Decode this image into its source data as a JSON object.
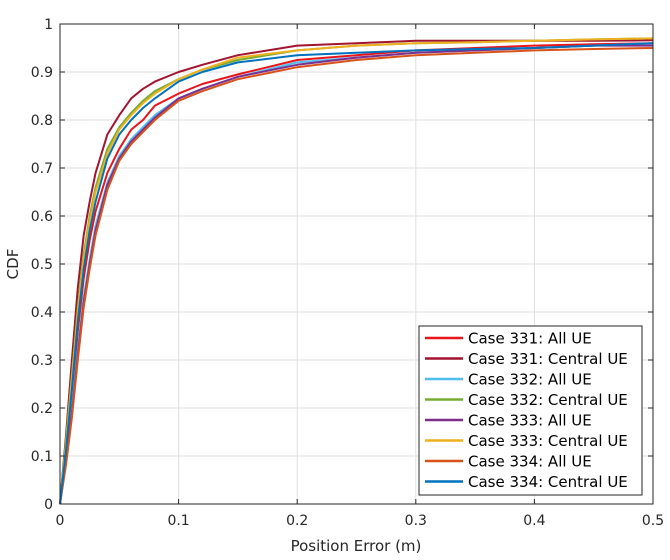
{
  "chart_data": {
    "type": "line",
    "title": "",
    "xlabel": "Position Error (m)",
    "ylabel": "CDF",
    "xlim": [
      0,
      0.5
    ],
    "ylim": [
      0,
      1
    ],
    "xticks": [
      0,
      0.1,
      0.2,
      0.3,
      0.4,
      0.5
    ],
    "xtick_labels": [
      "0",
      "0.1",
      "0.2",
      "0.3",
      "0.4",
      "0.5"
    ],
    "yticks": [
      0,
      0.1,
      0.2,
      0.3,
      0.4,
      0.5,
      0.6,
      0.7,
      0.8,
      0.9,
      1
    ],
    "ytick_labels": [
      "0",
      "0.1",
      "0.2",
      "0.3",
      "0.4",
      "0.5",
      "0.6",
      "0.7",
      "0.8",
      "0.9",
      "1"
    ],
    "grid": true,
    "legend_position": "bottom-right",
    "series": [
      {
        "name": "Case 331: All UE",
        "color": "#e8161b",
        "x": [
          0,
          0.005,
          0.01,
          0.015,
          0.02,
          0.025,
          0.03,
          0.04,
          0.05,
          0.06,
          0.07,
          0.08,
          0.1,
          0.12,
          0.15,
          0.2,
          0.25,
          0.3,
          0.35,
          0.4,
          0.45,
          0.5
        ],
        "y": [
          0,
          0.1,
          0.22,
          0.36,
          0.47,
          0.55,
          0.61,
          0.69,
          0.74,
          0.78,
          0.8,
          0.83,
          0.855,
          0.875,
          0.895,
          0.925,
          0.935,
          0.945,
          0.95,
          0.955,
          0.958,
          0.96
        ]
      },
      {
        "name": "Case 331: Central UE",
        "color": "#a2142f",
        "x": [
          0,
          0.005,
          0.01,
          0.015,
          0.02,
          0.025,
          0.03,
          0.04,
          0.05,
          0.06,
          0.07,
          0.08,
          0.1,
          0.12,
          0.15,
          0.2,
          0.25,
          0.3,
          0.35,
          0.4,
          0.45,
          0.5
        ],
        "y": [
          0,
          0.14,
          0.3,
          0.45,
          0.56,
          0.63,
          0.69,
          0.77,
          0.81,
          0.845,
          0.865,
          0.88,
          0.9,
          0.915,
          0.935,
          0.955,
          0.96,
          0.965,
          0.965,
          0.965,
          0.965,
          0.966
        ]
      },
      {
        "name": "Case 332: All UE",
        "color": "#4dbeee",
        "x": [
          0,
          0.005,
          0.01,
          0.015,
          0.02,
          0.025,
          0.03,
          0.04,
          0.05,
          0.06,
          0.07,
          0.08,
          0.1,
          0.12,
          0.15,
          0.2,
          0.25,
          0.3,
          0.35,
          0.4,
          0.45,
          0.5
        ],
        "y": [
          0,
          0.1,
          0.2,
          0.32,
          0.43,
          0.51,
          0.58,
          0.67,
          0.725,
          0.76,
          0.785,
          0.81,
          0.845,
          0.865,
          0.89,
          0.92,
          0.93,
          0.94,
          0.945,
          0.95,
          0.955,
          0.96
        ]
      },
      {
        "name": "Case 332: Central UE",
        "color": "#77ac30",
        "x": [
          0,
          0.005,
          0.01,
          0.015,
          0.02,
          0.025,
          0.03,
          0.04,
          0.05,
          0.06,
          0.07,
          0.08,
          0.1,
          0.12,
          0.15,
          0.2,
          0.25,
          0.3,
          0.35,
          0.4,
          0.45,
          0.5
        ],
        "y": [
          0,
          0.13,
          0.27,
          0.41,
          0.52,
          0.6,
          0.66,
          0.74,
          0.785,
          0.815,
          0.84,
          0.86,
          0.885,
          0.905,
          0.925,
          0.945,
          0.955,
          0.96,
          0.962,
          0.965,
          0.968,
          0.97
        ]
      },
      {
        "name": "Case 333: All UE",
        "color": "#7e2f8e",
        "x": [
          0,
          0.005,
          0.01,
          0.015,
          0.02,
          0.025,
          0.03,
          0.04,
          0.05,
          0.06,
          0.07,
          0.08,
          0.1,
          0.12,
          0.15,
          0.2,
          0.25,
          0.3,
          0.35,
          0.4,
          0.45,
          0.5
        ],
        "y": [
          0,
          0.09,
          0.19,
          0.31,
          0.42,
          0.5,
          0.57,
          0.665,
          0.72,
          0.755,
          0.78,
          0.805,
          0.845,
          0.865,
          0.89,
          0.915,
          0.93,
          0.94,
          0.945,
          0.95,
          0.955,
          0.955
        ]
      },
      {
        "name": "Case 333: Central UE",
        "color": "#edb120",
        "x": [
          0,
          0.005,
          0.01,
          0.015,
          0.02,
          0.025,
          0.03,
          0.04,
          0.05,
          0.06,
          0.07,
          0.08,
          0.1,
          0.12,
          0.15,
          0.2,
          0.25,
          0.3,
          0.35,
          0.4,
          0.45,
          0.5
        ],
        "y": [
          0,
          0.12,
          0.26,
          0.4,
          0.51,
          0.59,
          0.65,
          0.73,
          0.78,
          0.81,
          0.835,
          0.855,
          0.885,
          0.905,
          0.93,
          0.945,
          0.955,
          0.96,
          0.962,
          0.965,
          0.968,
          0.97
        ]
      },
      {
        "name": "Case 334: All UE",
        "color": "#d95319",
        "x": [
          0,
          0.005,
          0.01,
          0.015,
          0.02,
          0.025,
          0.03,
          0.04,
          0.05,
          0.06,
          0.07,
          0.08,
          0.1,
          0.12,
          0.15,
          0.2,
          0.25,
          0.3,
          0.35,
          0.4,
          0.45,
          0.5
        ],
        "y": [
          0,
          0.08,
          0.18,
          0.3,
          0.41,
          0.49,
          0.56,
          0.655,
          0.715,
          0.75,
          0.775,
          0.8,
          0.84,
          0.86,
          0.885,
          0.91,
          0.925,
          0.935,
          0.94,
          0.945,
          0.948,
          0.95
        ]
      },
      {
        "name": "Case 334: Central UE",
        "color": "#0072bd",
        "x": [
          0,
          0.005,
          0.01,
          0.015,
          0.02,
          0.025,
          0.03,
          0.04,
          0.05,
          0.06,
          0.07,
          0.08,
          0.1,
          0.12,
          0.15,
          0.2,
          0.25,
          0.3,
          0.35,
          0.4,
          0.45,
          0.5
        ],
        "y": [
          0,
          0.11,
          0.24,
          0.38,
          0.49,
          0.57,
          0.63,
          0.72,
          0.77,
          0.8,
          0.825,
          0.845,
          0.88,
          0.9,
          0.92,
          0.935,
          0.94,
          0.945,
          0.948,
          0.95,
          0.955,
          0.96
        ]
      }
    ]
  }
}
